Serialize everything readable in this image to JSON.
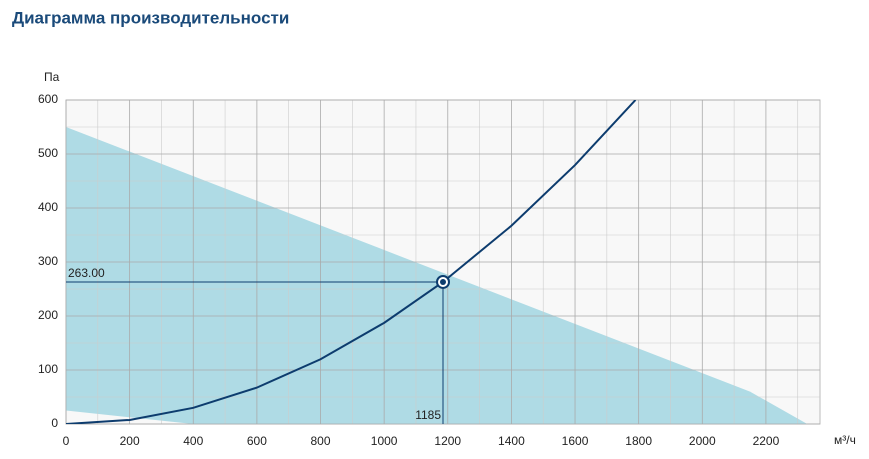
{
  "chart_data": {
    "type": "line",
    "title": "Диаграмма производительности",
    "x_label": "м³/ч",
    "y_label": "Па",
    "xlim": [
      0,
      2370
    ],
    "ylim": [
      0,
      600
    ],
    "xticks": [
      0,
      200,
      400,
      600,
      800,
      1000,
      1200,
      1400,
      1600,
      1800,
      2000,
      2200
    ],
    "yticks": [
      0,
      100,
      200,
      300,
      400,
      500,
      600
    ],
    "grid": true,
    "minor_grid": true,
    "area": {
      "color": "#afdbe5",
      "x": [
        0,
        400,
        2150,
        2330
      ],
      "upper": [
        550,
        459,
        60,
        0
      ],
      "lower": [
        25,
        0,
        0,
        0
      ]
    },
    "series": [
      {
        "color": "#0d3c6e",
        "x": [
          0,
          200,
          400,
          600,
          800,
          1000,
          1185,
          1400,
          1600,
          1790
        ],
        "values": [
          0,
          7.5,
          30,
          67.4,
          119.9,
          187.3,
          263,
          367.1,
          479.5,
          600
        ]
      }
    ],
    "point": {
      "x": 1185,
      "y": 263,
      "value_label": "263.00",
      "color": "#0d3c6e"
    }
  }
}
